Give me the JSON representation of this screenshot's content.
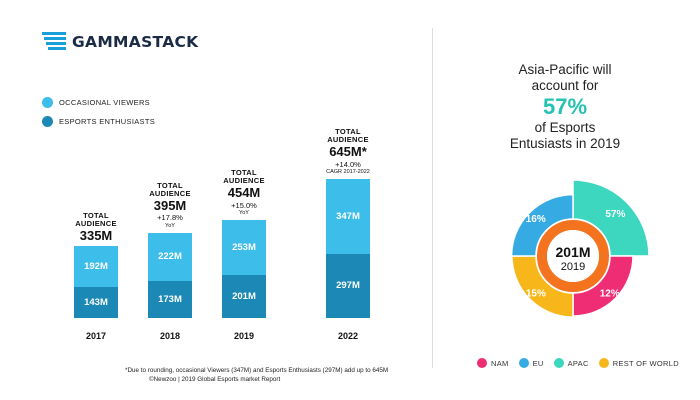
{
  "brand": {
    "name": "GAMMASTACK",
    "color": "#1a9fd9"
  },
  "colors": {
    "occasional": "#3dbde9",
    "enthusiasts": "#1b88b5",
    "nam": "#ee2d74",
    "eu": "#36aae3",
    "apac": "#3dd6bf",
    "rest": "#f7b71b",
    "center_ring": "#f3731f",
    "accent_text": "#24c3b1"
  },
  "legend": [
    {
      "label": "OCCASIONAL VIEWERS",
      "color": "#3dbde9"
    },
    {
      "label": "ESPORTS ENTHUSIASTS",
      "color": "#1b88b5"
    }
  ],
  "chart_data": [
    {
      "type": "bar",
      "stacked": true,
      "categories": [
        "2017",
        "2018",
        "2019",
        "2022"
      ],
      "series": [
        {
          "name": "OCCASIONAL VIEWERS",
          "values": [
            192,
            222,
            253,
            347
          ],
          "labels": [
            "192M",
            "222M",
            "253M",
            "347M"
          ]
        },
        {
          "name": "ESPORTS ENTHUSIASTS",
          "values": [
            143,
            173,
            201,
            297
          ],
          "labels": [
            "143M",
            "173M",
            "201M",
            "297M"
          ]
        }
      ],
      "totals": [
        {
          "header": "TOTAL AUDIENCE",
          "value": "335M",
          "growth": "",
          "sub": ""
        },
        {
          "header": "TOTAL AUDIENCE",
          "value": "395M",
          "growth": "+17.8%",
          "sub": "YoY"
        },
        {
          "header": "TOTAL AUDIENCE",
          "value": "454M",
          "growth": "+15.0%",
          "sub": "YoY"
        },
        {
          "header": "TOTAL AUDIENCE",
          "value": "645M*",
          "growth": "+14.0%",
          "sub": "CAGR 2017-2022"
        }
      ],
      "ylim": [
        0,
        700
      ]
    },
    {
      "type": "pie",
      "center_value": "201M",
      "center_label": "2019",
      "slices": [
        {
          "name": "APAC",
          "value": 57,
          "label": "57%",
          "color": "#3dd6bf"
        },
        {
          "name": "NAM",
          "value": 12,
          "label": "12%",
          "color": "#ee2d74"
        },
        {
          "name": "REST OF WORLD",
          "value": 15,
          "label": "15%",
          "color": "#f7b71b"
        },
        {
          "name": "EU",
          "value": 16,
          "label": "16%",
          "color": "#36aae3"
        }
      ]
    }
  ],
  "headline": {
    "line1": "Asia-Pacific will",
    "line2": "account for",
    "percent": "57%",
    "line3": "of Esports",
    "line4": "Entusiasts in 2019"
  },
  "pie_legend": [
    {
      "label": "NAM",
      "color": "#ee2d74"
    },
    {
      "label": "EU",
      "color": "#36aae3"
    },
    {
      "label": "APAC",
      "color": "#3dd6bf"
    },
    {
      "label": "REST OF WORLD",
      "color": "#f7b71b"
    }
  ],
  "footnote": {
    "line1": "*Due to rounding, occasional Viewers (347M) and Esports Enthusiasts (297M) add up to 645M",
    "line2": "©Newzoo | 2019 Global Esports market Report"
  }
}
